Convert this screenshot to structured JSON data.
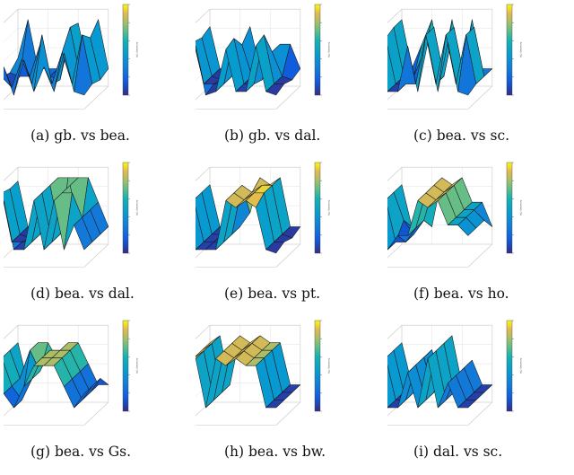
{
  "chart_data": [
    {
      "type": "surface",
      "caption": "(a) gb. vs bea.",
      "colorbar_label": "Accuracy (%)",
      "rows": [
        [
          40,
          95,
          25,
          25,
          25,
          60,
          90,
          25,
          95,
          25
        ],
        [
          30,
          25,
          25,
          70,
          25,
          20,
          95,
          25,
          80,
          20
        ],
        [
          35,
          20,
          60,
          25,
          95,
          25,
          70,
          25,
          95,
          25
        ],
        [
          25,
          60,
          20,
          70,
          25,
          60,
          25,
          80,
          25,
          20
        ]
      ]
    },
    {
      "type": "surface",
      "caption": "(b) gb. vs dal.",
      "colorbar_label": "Accuracy (%)",
      "rows": [
        [
          85,
          25,
          25,
          25,
          85,
          25,
          25,
          60,
          60,
          25
        ],
        [
          80,
          25,
          20,
          25,
          70,
          25,
          20,
          60,
          25,
          20
        ],
        [
          85,
          25,
          25,
          25,
          90,
          25,
          25,
          95,
          25,
          25
        ],
        [
          80,
          90,
          20,
          25,
          85,
          25,
          25,
          90,
          25,
          20
        ]
      ]
    },
    {
      "type": "surface",
      "caption": "(c) bea. vs sc.",
      "colorbar_label": "Accuracy (%)",
      "rows": [
        [
          95,
          25,
          60,
          95,
          25,
          95,
          25,
          95,
          25,
          25
        ],
        [
          95,
          25,
          25,
          60,
          95,
          25,
          95,
          25,
          95,
          25
        ],
        [
          90,
          25,
          25,
          25,
          95,
          25,
          95,
          25,
          95,
          25
        ],
        [
          95,
          25,
          25,
          90,
          25,
          95,
          25,
          95,
          25,
          20
        ]
      ]
    },
    {
      "type": "surface",
      "caption": "(d) bea. vs dal.",
      "colorbar_label": "Accuracy (%)",
      "rows": [
        [
          90,
          25,
          25,
          25,
          95,
          95,
          95,
          95,
          60,
          25
        ],
        [
          90,
          25,
          20,
          25,
          95,
          25,
          95,
          25,
          60,
          25
        ],
        [
          95,
          25,
          25,
          25,
          95,
          25,
          95,
          95,
          60,
          25
        ],
        [
          90,
          95,
          25,
          25,
          95,
          25,
          95,
          25,
          60,
          25
        ]
      ]
    },
    {
      "type": "surface",
      "caption": "(e) bea. vs pt.",
      "colorbar_label": "Accuracy (%)",
      "rows": [
        [
          85,
          25,
          25,
          25,
          45,
          95,
          85,
          95,
          25,
          25
        ],
        [
          85,
          25,
          25,
          25,
          95,
          85,
          95,
          95,
          25,
          20
        ],
        [
          85,
          25,
          25,
          25,
          95,
          85,
          95,
          95,
          25,
          25
        ],
        [
          80,
          25,
          25,
          25,
          95,
          85,
          95,
          85,
          25,
          20
        ]
      ]
    },
    {
      "type": "surface",
      "caption": "(f) bea. vs ho.",
      "colorbar_label": "Accuracy (%)",
      "rows": [
        [
          85,
          25,
          60,
          25,
          95,
          85,
          95,
          60,
          60,
          25
        ],
        [
          85,
          45,
          25,
          45,
          95,
          85,
          95,
          60,
          60,
          45
        ],
        [
          85,
          25,
          25,
          45,
          95,
          85,
          95,
          60,
          60,
          45
        ],
        [
          85,
          25,
          45,
          45,
          95,
          85,
          95,
          60,
          60,
          45
        ]
      ]
    },
    {
      "type": "surface",
      "caption": "(g) bea. vs Gs.",
      "colorbar_label": "Accuracy (%)",
      "rows": [
        [
          85,
          25,
          85,
          85,
          60,
          85,
          85,
          55,
          25,
          25
        ],
        [
          85,
          45,
          85,
          55,
          85,
          85,
          85,
          55,
          25,
          45
        ],
        [
          85,
          45,
          25,
          55,
          85,
          85,
          85,
          55,
          25,
          45
        ],
        [
          85,
          45,
          25,
          55,
          85,
          85,
          85,
          55,
          25,
          45
        ]
      ]
    },
    {
      "type": "surface",
      "caption": "(h) bea. vs bw.",
      "colorbar_label": "Accuracy (%)",
      "rows": [
        [
          85,
          95,
          25,
          95,
          85,
          95,
          85,
          85,
          25,
          25
        ],
        [
          85,
          95,
          25,
          95,
          85,
          95,
          85,
          85,
          25,
          25
        ],
        [
          85,
          95,
          25,
          95,
          85,
          95,
          85,
          85,
          25,
          25
        ],
        [
          85,
          95,
          25,
          95,
          85,
          95,
          85,
          85,
          25,
          25
        ]
      ]
    },
    {
      "type": "surface",
      "caption": "(i) dal. vs sc.",
      "colorbar_label": "Accuracy (%)",
      "rows": [
        [
          85,
          25,
          25,
          75,
          25,
          95,
          25,
          60,
          25,
          25
        ],
        [
          85,
          25,
          25,
          75,
          25,
          95,
          25,
          60,
          25,
          25
        ],
        [
          85,
          25,
          25,
          75,
          25,
          95,
          25,
          60,
          25,
          25
        ],
        [
          85,
          25,
          25,
          75,
          25,
          95,
          25,
          60,
          25,
          25
        ]
      ]
    }
  ]
}
